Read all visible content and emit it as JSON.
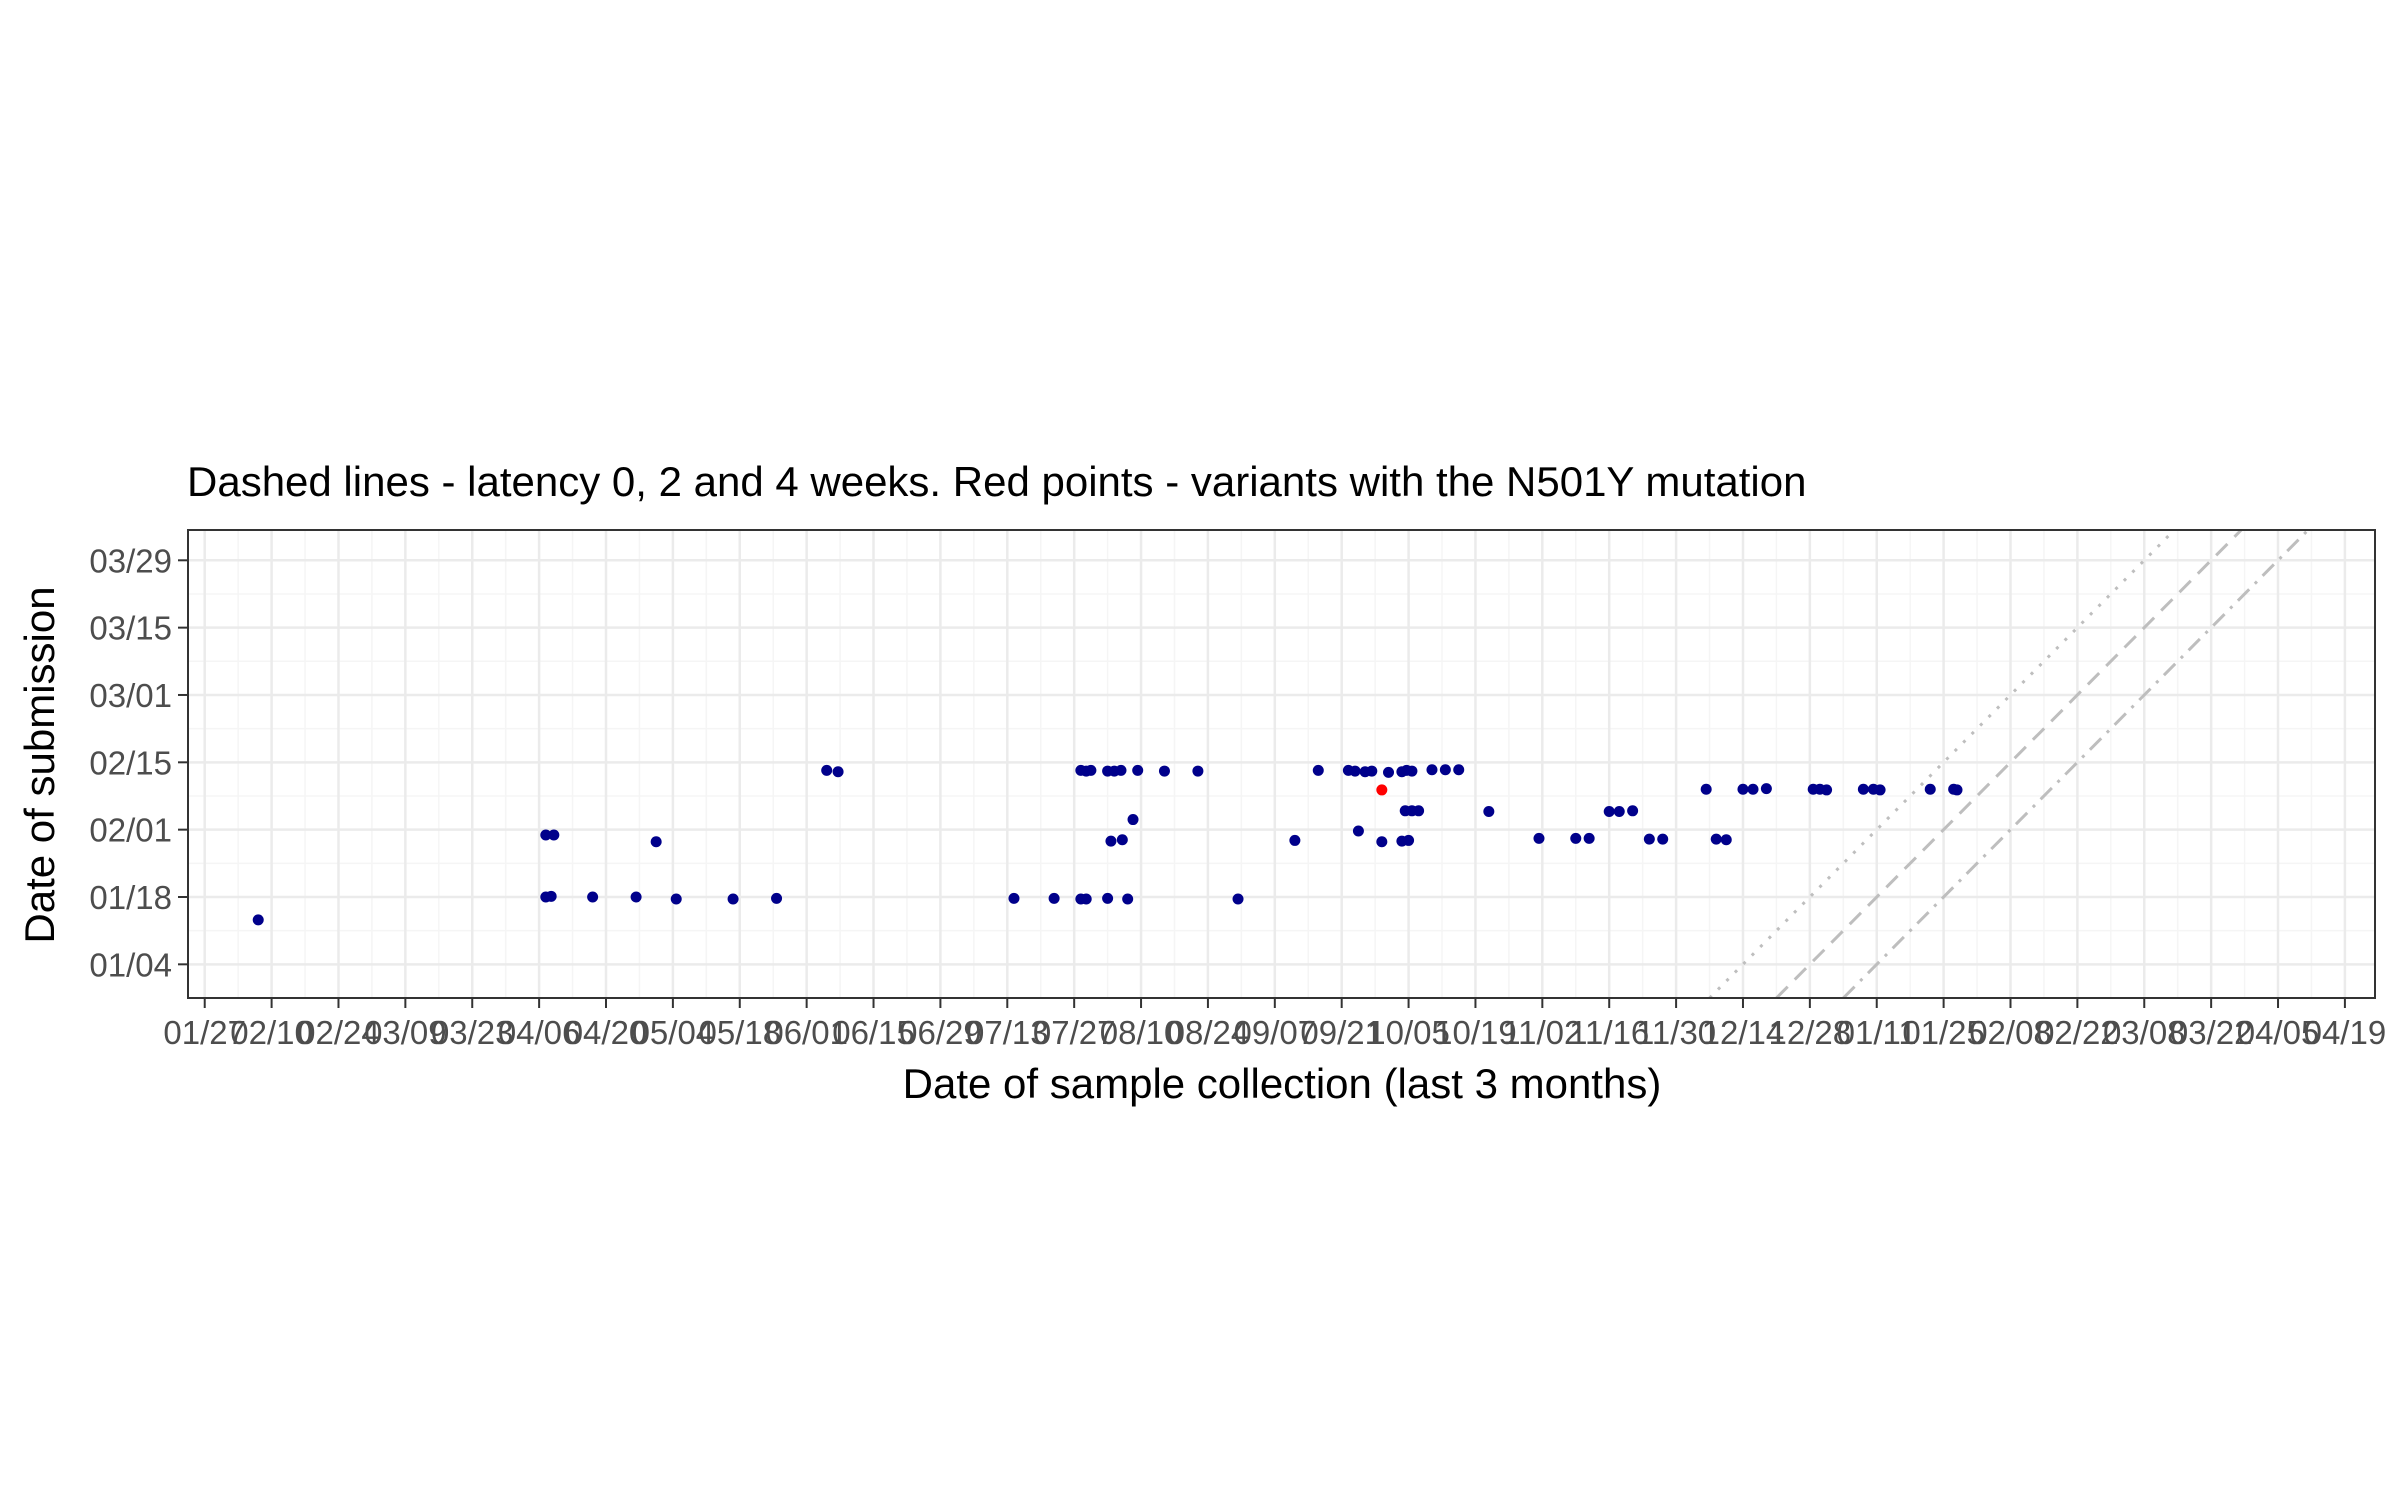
{
  "chart_data": {
    "type": "scatter",
    "title": "Dashed lines - latency 0, 2 and 4 weeks. Red points - variants with the N501Y mutation",
    "xlabel": "Date of sample collection (last 3 months)",
    "ylabel": "Date of submission",
    "x_tick_labels": [
      "01/27",
      "02/10",
      "02/24",
      "03/09",
      "03/23",
      "04/06",
      "04/20",
      "05/04",
      "05/18",
      "06/01",
      "06/15",
      "06/29",
      "07/13",
      "07/27",
      "08/10",
      "08/24",
      "09/07",
      "09/21",
      "10/05",
      "10/19",
      "11/02",
      "11/16",
      "11/30",
      "12/14",
      "12/28",
      "01/11",
      "01/25",
      "02/08",
      "02/22",
      "03/08",
      "03/22",
      "04/05",
      "04/19"
    ],
    "y_tick_labels": [
      "01/04",
      "01/18",
      "02/01",
      "02/15",
      "03/01",
      "03/15",
      "03/29"
    ],
    "xlim": [
      -0.25,
      32.45
    ],
    "ylim": [
      -0.5,
      6.45
    ],
    "grid": true,
    "colors": {
      "point": "#00008b",
      "highlight": "#ff0000",
      "latency_line": "#bebebe",
      "panel_border": "#333333",
      "grid_major": "#ebebeb",
      "grid_minor": "#f5f5f5"
    },
    "latency_lines": [
      {
        "latency_weeks": 0,
        "style": "dotted"
      },
      {
        "latency_weeks": 2,
        "style": "dashed"
      },
      {
        "latency_weeks": 4,
        "style": "dotdash"
      }
    ],
    "series": [
      {
        "values": [
          [
            0.8,
            0.66
          ],
          [
            5.1,
            1.0
          ],
          [
            5.18,
            1.01
          ],
          [
            5.1,
            1.92
          ],
          [
            5.22,
            1.92
          ],
          [
            5.8,
            1.0
          ],
          [
            6.45,
            1.0
          ],
          [
            6.75,
            1.82
          ],
          [
            7.05,
            0.97
          ],
          [
            7.9,
            0.97
          ],
          [
            8.55,
            0.98
          ],
          [
            9.3,
            2.88
          ],
          [
            9.47,
            2.86
          ],
          [
            12.1,
            0.98
          ],
          [
            12.7,
            0.98
          ],
          [
            13.1,
            0.97
          ],
          [
            13.18,
            0.97
          ],
          [
            13.5,
            0.98
          ],
          [
            13.8,
            0.97
          ],
          [
            13.1,
            2.88
          ],
          [
            13.18,
            2.87
          ],
          [
            13.25,
            2.88
          ],
          [
            13.5,
            2.87
          ],
          [
            13.6,
            2.87
          ],
          [
            13.7,
            2.88
          ],
          [
            13.95,
            2.88
          ],
          [
            14.35,
            2.87
          ],
          [
            14.85,
            2.87
          ],
          [
            13.55,
            1.83
          ],
          [
            13.72,
            1.85
          ],
          [
            13.88,
            2.15
          ],
          [
            15.45,
            0.97
          ],
          [
            16.3,
            1.84
          ],
          [
            16.65,
            2.88
          ],
          [
            17.1,
            2.88
          ],
          [
            17.2,
            2.87
          ],
          [
            17.35,
            2.86
          ],
          [
            17.45,
            2.87
          ],
          [
            17.7,
            2.85
          ],
          [
            17.9,
            2.86
          ],
          [
            17.97,
            2.88
          ],
          [
            18.05,
            2.87
          ],
          [
            18.35,
            2.89
          ],
          [
            18.55,
            2.89
          ],
          [
            18.75,
            2.89
          ],
          [
            17.25,
            1.98
          ],
          [
            17.6,
            1.82
          ],
          [
            17.9,
            1.83
          ],
          [
            18.0,
            1.84
          ],
          [
            17.95,
            2.28
          ],
          [
            18.05,
            2.28
          ],
          [
            18.15,
            2.28
          ],
          [
            19.2,
            2.27
          ],
          [
            19.95,
            1.87
          ],
          [
            20.5,
            1.87
          ],
          [
            20.7,
            1.87
          ],
          [
            21.0,
            2.27
          ],
          [
            21.15,
            2.27
          ],
          [
            21.35,
            2.28
          ],
          [
            21.6,
            1.86
          ],
          [
            21.8,
            1.86
          ],
          [
            22.45,
            2.6
          ],
          [
            22.6,
            1.86
          ],
          [
            22.75,
            1.85
          ],
          [
            23.0,
            2.6
          ],
          [
            23.15,
            2.6
          ],
          [
            23.35,
            2.61
          ],
          [
            24.05,
            2.6
          ],
          [
            24.15,
            2.6
          ],
          [
            24.25,
            2.59
          ],
          [
            24.8,
            2.6
          ],
          [
            24.95,
            2.6
          ],
          [
            25.05,
            2.59
          ],
          [
            25.8,
            2.6
          ],
          [
            26.15,
            2.6
          ],
          [
            26.2,
            2.59
          ]
        ]
      },
      {
        "values": [
          [
            17.6,
            2.59
          ]
        ]
      }
    ]
  }
}
